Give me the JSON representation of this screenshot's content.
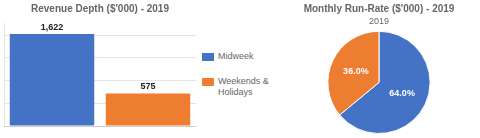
{
  "chart_data": [
    {
      "type": "bar",
      "title": "Revenue Depth ($'000) - 2019",
      "categories": [
        "Midweek",
        "Weekends &\nHolidays"
      ],
      "values": [
        1622,
        575
      ],
      "value_labels": [
        "1,622",
        "575"
      ],
      "colors": [
        "#4472C4",
        "#ED7D31"
      ],
      "ylim": [
        0,
        1816.64
      ],
      "yticks": [
        0,
        400,
        800,
        1200,
        1600
      ],
      "grid": true,
      "tick_labels": false,
      "data_labels": true,
      "legend": "right"
    },
    {
      "type": "pie",
      "title": "Monthly Run-Rate ($'000) - 2019",
      "annotations": [
        "2019"
      ],
      "values": [
        64.0,
        36.0
      ],
      "value_labels": [
        "64.0%",
        "36.0%"
      ],
      "colors": [
        "#4472C4",
        "#ED7D31"
      ],
      "data_labels": true
    }
  ]
}
